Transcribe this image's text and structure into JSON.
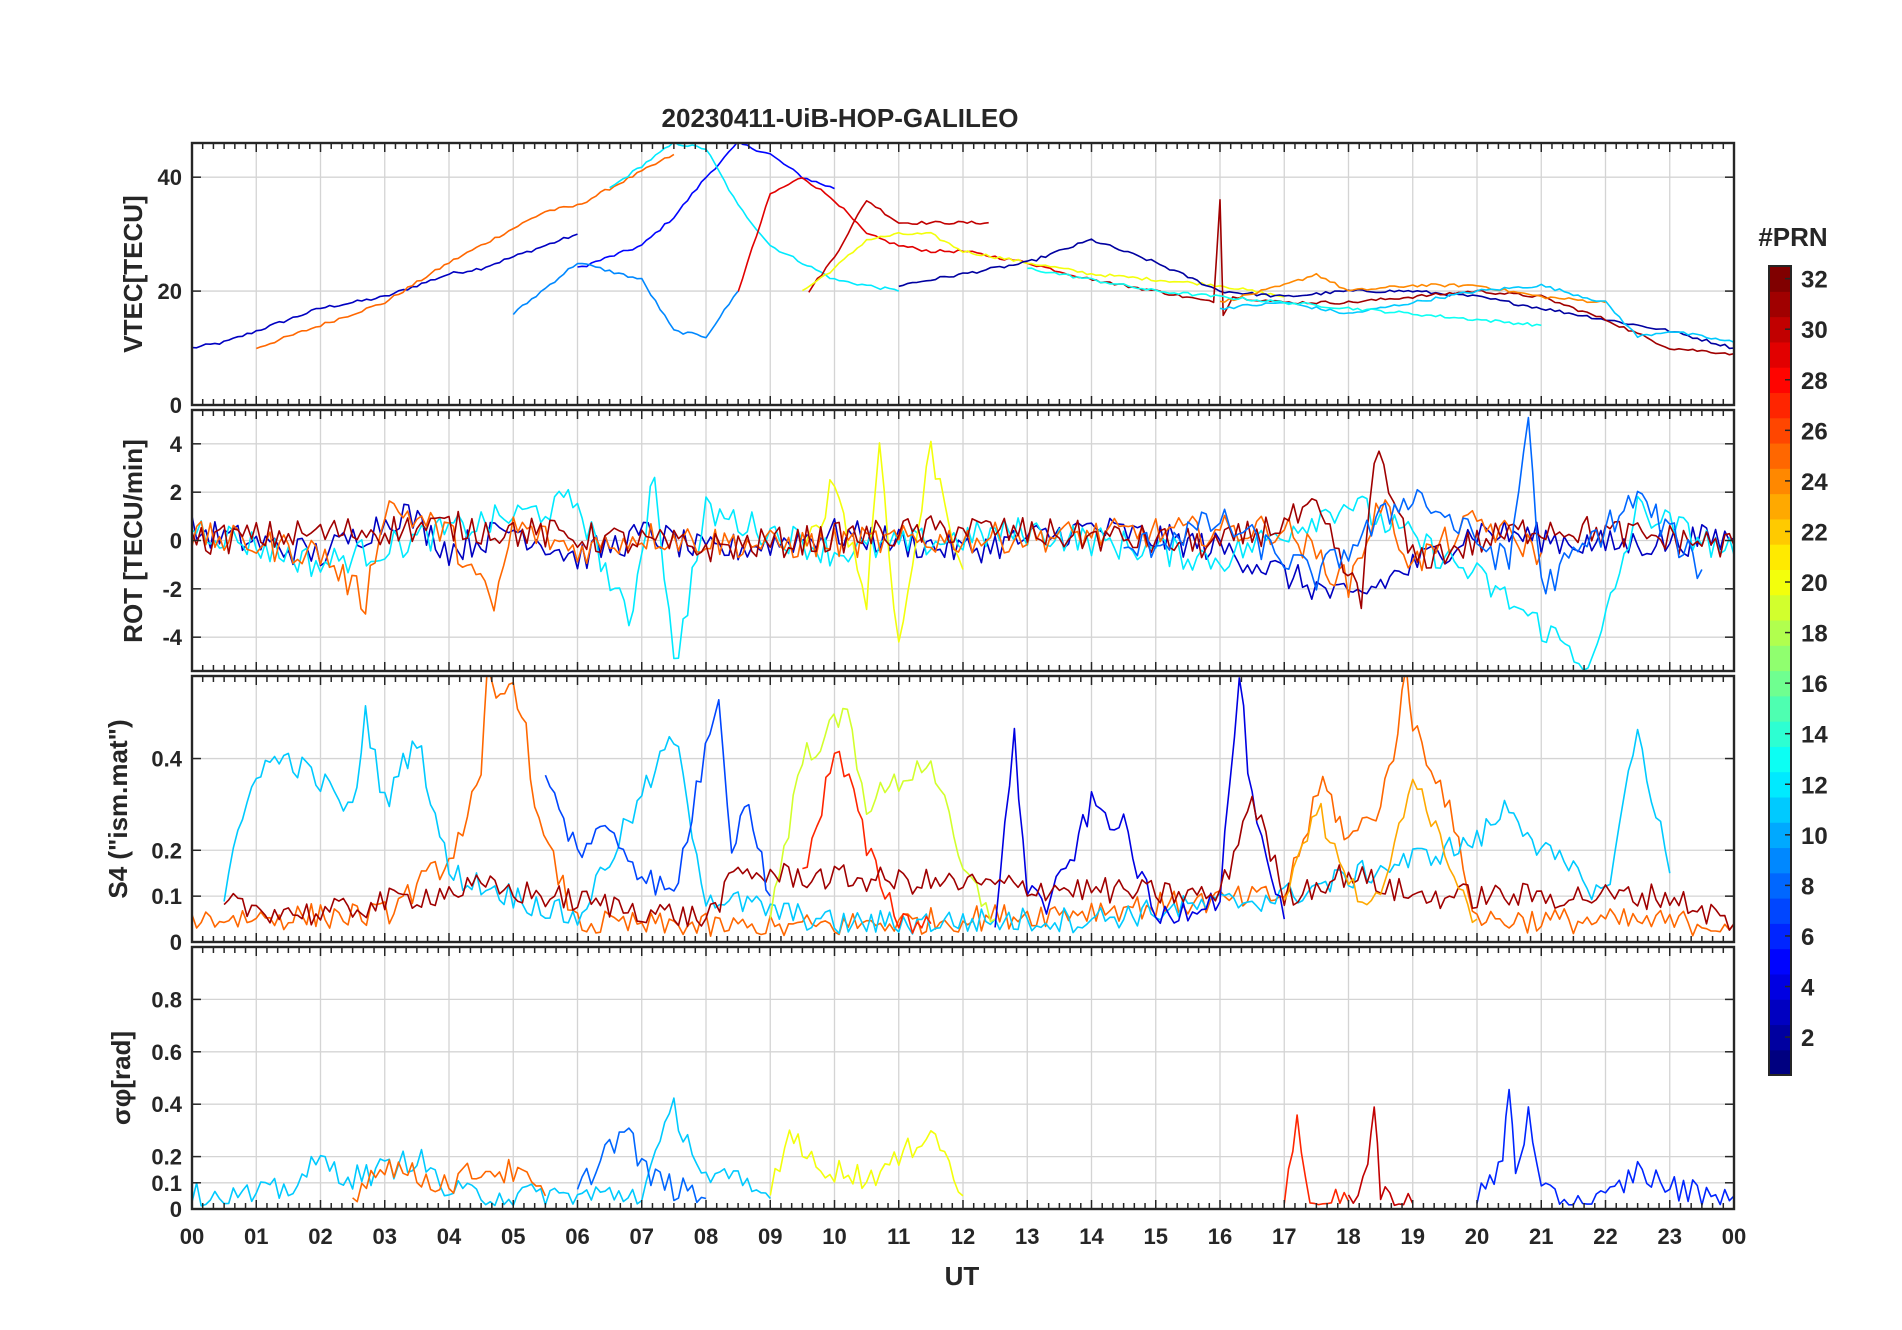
{
  "figure": {
    "title": "20230411-UiB-HOP-GALILEO",
    "xlabel": "UT"
  },
  "chart_data": [
    {
      "type": "line",
      "id": "vtec",
      "ylabel": "VTEC[TECU]",
      "ylim": [
        0,
        46
      ],
      "yticks": [
        0,
        20,
        40
      ],
      "xlim": [
        0,
        24
      ],
      "series": [
        {
          "prn": 3,
          "x": [
            0,
            0.5,
            1,
            1.5,
            2,
            2.5,
            3,
            3.5,
            4,
            4.5,
            5,
            5.5,
            6
          ],
          "y": [
            10,
            11,
            13,
            15,
            17,
            18,
            19,
            21,
            23,
            24,
            26,
            28,
            30
          ]
        },
        {
          "prn": 5,
          "x": [
            6,
            6.5,
            7,
            7.5,
            8,
            8.5,
            9,
            9.5,
            10
          ],
          "y": [
            24,
            26,
            28,
            33,
            40,
            46,
            44,
            40,
            38
          ]
        },
        {
          "prn": 25,
          "x": [
            1,
            2,
            3,
            4,
            5,
            5.5,
            6,
            7,
            7.5
          ],
          "y": [
            10,
            14,
            18,
            25,
            31,
            34,
            35,
            41,
            44
          ]
        },
        {
          "prn": 12,
          "x": [
            6.5,
            7,
            7.5,
            8,
            8.5,
            9,
            10,
            11
          ],
          "y": [
            38,
            42,
            46,
            45,
            35,
            28,
            22,
            20
          ]
        },
        {
          "prn": 29,
          "x": [
            8.5,
            9,
            9.5,
            10,
            10.5,
            11,
            11.5,
            12,
            12.5,
            13,
            14
          ],
          "y": [
            20,
            37,
            40,
            36,
            30,
            28,
            27,
            27,
            26,
            25,
            22
          ]
        },
        {
          "prn": 30,
          "x": [
            9.6,
            10,
            10.5,
            11,
            11.5,
            12,
            12.4
          ],
          "y": [
            20,
            26,
            36,
            32,
            32,
            32,
            32
          ]
        },
        {
          "prn": 20,
          "x": [
            9.5,
            10,
            10.5,
            11,
            11.5,
            12,
            13,
            14,
            15,
            16,
            17
          ],
          "y": [
            20,
            24,
            29,
            30,
            30,
            27,
            25,
            23,
            22,
            21,
            19
          ]
        },
        {
          "prn": 9,
          "x": [
            5,
            6,
            7,
            7.5,
            8,
            8.5
          ],
          "y": [
            16,
            25,
            22,
            13,
            12,
            20
          ]
        },
        {
          "prn": 2,
          "x": [
            11,
            12,
            13,
            14,
            15,
            16,
            17,
            18,
            19,
            20,
            21,
            22,
            23,
            24
          ],
          "y": [
            21,
            23,
            25,
            29,
            25,
            20,
            19,
            20,
            20,
            19,
            17,
            15,
            13,
            10
          ]
        },
        {
          "prn": 31,
          "x": [
            14,
            15,
            15.9,
            16,
            16.05,
            16.2,
            17,
            18,
            19,
            20,
            21,
            22,
            23,
            24
          ],
          "y": [
            22,
            20,
            18,
            36,
            16,
            19,
            18,
            18,
            19,
            20,
            19,
            15,
            10,
            9
          ]
        },
        {
          "prn": 24,
          "x": [
            16,
            17,
            17.5,
            18,
            19,
            20,
            21,
            22
          ],
          "y": [
            18,
            21,
            23,
            20,
            21,
            21,
            19,
            18
          ]
        },
        {
          "prn": 11,
          "x": [
            16,
            17,
            18,
            19,
            20,
            21,
            22,
            22.5,
            23,
            24
          ],
          "y": [
            17,
            18,
            16,
            18,
            20,
            21,
            18,
            12,
            13,
            11
          ]
        },
        {
          "prn": 13,
          "x": [
            13,
            14,
            15,
            16,
            17,
            18,
            19,
            20,
            21
          ],
          "y": [
            24,
            22,
            20,
            19,
            18,
            17,
            16,
            15,
            14
          ]
        }
      ]
    },
    {
      "type": "line",
      "id": "rot",
      "ylabel": "ROT [TECU/min]",
      "ylim": [
        -5.4,
        5.4
      ],
      "yticks": [
        -4,
        -2,
        0,
        2,
        4
      ],
      "xlim": [
        0,
        24
      ],
      "series": [
        {
          "prn": 3,
          "x": [
            0,
            2,
            3.3,
            4,
            5,
            6,
            7.1,
            8,
            10,
            12,
            14,
            16,
            18,
            20,
            22,
            24
          ],
          "y": [
            0.4,
            -0.6,
            1.2,
            -0.4,
            0.5,
            -0.7,
            0.3,
            -0.5,
            0.3,
            -0.4,
            0.5,
            -0.3,
            -2.5,
            0.4,
            -0.2,
            0.1
          ]
        },
        {
          "prn": 12,
          "x": [
            0,
            2,
            4,
            6,
            6.8,
            7.2,
            7.5,
            8,
            10,
            13,
            16,
            18,
            20,
            21.8,
            22.5,
            24
          ],
          "y": [
            0.6,
            -1,
            0.4,
            1.6,
            -3.5,
            3,
            -5.3,
            1.2,
            -0.5,
            0.4,
            -0.8,
            1.6,
            -1.5,
            -5.2,
            1.3,
            -0.6
          ]
        },
        {
          "prn": 20,
          "x": [
            9.5,
            10,
            10.5,
            10.7,
            11,
            11.5,
            12
          ],
          "y": [
            -0.8,
            2.5,
            -2.5,
            4.2,
            -4.5,
            3.8,
            -1.2
          ]
        },
        {
          "prn": 25,
          "x": [
            0,
            2,
            2.7,
            3,
            4,
            4.7,
            5,
            6,
            7,
            9,
            17,
            18,
            18.5,
            19,
            20,
            21
          ],
          "y": [
            0.2,
            -0.5,
            -2.5,
            1.5,
            0.3,
            -2.8,
            0.6,
            -0.4,
            0.2,
            -0.2,
            0.5,
            -1.8,
            1.6,
            -1,
            0.8,
            -0.5
          ]
        },
        {
          "prn": 31,
          "x": [
            0,
            4,
            8,
            12,
            16,
            17.5,
            18.2,
            18.4,
            19,
            21,
            24
          ],
          "y": [
            0,
            0.6,
            -0.3,
            0.5,
            -0.2,
            1.2,
            -2.6,
            3.8,
            -0.8,
            0.6,
            -0.2
          ]
        },
        {
          "prn": 8,
          "x": [
            14.5,
            16,
            17.5,
            19,
            20.5,
            20.8,
            21,
            22.5,
            23.5
          ],
          "y": [
            -0.5,
            0.8,
            -1.5,
            2,
            -1,
            5.2,
            -2,
            1.8,
            -1.2
          ]
        }
      ]
    },
    {
      "type": "line",
      "id": "s4",
      "ylabel": "S4 (\"ism.mat\")",
      "ylim": [
        0,
        0.58
      ],
      "yticks": [
        0,
        0.1,
        0.2,
        0.4
      ],
      "xlim": [
        0,
        24
      ],
      "series": [
        {
          "prn": 25,
          "x": [
            0,
            3,
            4,
            4.5,
            4.6,
            4.8,
            5,
            5.2,
            5.4,
            6,
            9,
            12,
            17,
            17.6,
            18,
            18.5,
            18.7,
            18.9,
            19,
            19.5,
            20,
            24
          ],
          "y": [
            0.05,
            0.06,
            0.18,
            0.35,
            0.58,
            0.52,
            0.58,
            0.45,
            0.25,
            0.04,
            0.03,
            0.05,
            0.1,
            0.35,
            0.22,
            0.3,
            0.42,
            0.58,
            0.48,
            0.32,
            0.05,
            0.04
          ]
        },
        {
          "prn": 11,
          "x": [
            0.5,
            1,
            1.5,
            2,
            2.5,
            2.7,
            3,
            3.5,
            4,
            6,
            7.5,
            8,
            10,
            14,
            17,
            20,
            20.5,
            21,
            22,
            22.5,
            23
          ],
          "y": [
            0.1,
            0.38,
            0.4,
            0.35,
            0.28,
            0.5,
            0.3,
            0.45,
            0.15,
            0.05,
            0.45,
            0.1,
            0.04,
            0.05,
            0.1,
            0.22,
            0.3,
            0.2,
            0.1,
            0.46,
            0.15
          ]
        },
        {
          "prn": 27,
          "x": [
            9.5,
            9.8,
            10,
            10.3,
            10.5,
            11,
            11.5
          ],
          "y": [
            0.15,
            0.3,
            0.42,
            0.32,
            0.2,
            0.05,
            0.04
          ]
        },
        {
          "prn": 19,
          "x": [
            9,
            9.5,
            10.2,
            10.5,
            11,
            11.5,
            12,
            12.5
          ],
          "y": [
            0.06,
            0.4,
            0.5,
            0.3,
            0.35,
            0.4,
            0.15,
            0.05
          ]
        },
        {
          "prn": 4,
          "x": [
            12.5,
            12.8,
            13,
            13.3,
            13.6,
            14,
            14.5,
            15,
            16,
            16.3,
            16.5,
            16.8,
            17
          ],
          "y": [
            0.05,
            0.44,
            0.12,
            0.08,
            0.15,
            0.3,
            0.25,
            0.05,
            0.1,
            0.58,
            0.3,
            0.12,
            0.05
          ]
        },
        {
          "prn": 31,
          "x": [
            0.5,
            2,
            3.5,
            4.5,
            8,
            8.5,
            16,
            16.5,
            17,
            18,
            19,
            23,
            24
          ],
          "y": [
            0.08,
            0.06,
            0.1,
            0.12,
            0.05,
            0.15,
            0.1,
            0.32,
            0.1,
            0.15,
            0.1,
            0.1,
            0.04
          ]
        },
        {
          "prn": 7,
          "x": [
            5.5,
            6,
            6.5,
            7,
            7.5,
            8.2,
            8.4,
            8.6,
            9
          ],
          "y": [
            0.35,
            0.2,
            0.25,
            0.15,
            0.1,
            0.55,
            0.2,
            0.32,
            0.1
          ]
        },
        {
          "prn": 23,
          "x": [
            17,
            17.5,
            18,
            18.5,
            19,
            19.5,
            20
          ],
          "y": [
            0.1,
            0.3,
            0.12,
            0.08,
            0.38,
            0.2,
            0.05
          ]
        }
      ]
    },
    {
      "type": "line",
      "id": "sigma",
      "ylabel": "σφ[rad]",
      "ylim": [
        0,
        1.0
      ],
      "yticks": [
        0,
        0.1,
        0.2,
        0.4,
        0.6,
        0.8
      ],
      "xlim": [
        0,
        24
      ],
      "series": [
        {
          "prn": 11,
          "x": [
            0,
            1,
            1.5,
            2,
            2.5,
            3,
            3.5,
            4,
            5,
            6,
            7,
            7.5,
            8,
            8.5,
            9
          ],
          "y": [
            0.05,
            0.05,
            0.08,
            0.18,
            0.12,
            0.15,
            0.2,
            0.06,
            0.05,
            0.05,
            0.06,
            0.38,
            0.12,
            0.1,
            0.04
          ]
        },
        {
          "prn": 25,
          "x": [
            2.5,
            3,
            3.5,
            4,
            4.5,
            5,
            5.5
          ],
          "y": [
            0.06,
            0.18,
            0.12,
            0.1,
            0.15,
            0.14,
            0.05
          ]
        },
        {
          "prn": 8,
          "x": [
            6,
            6.5,
            6.8,
            7,
            7.5,
            8
          ],
          "y": [
            0.06,
            0.25,
            0.3,
            0.15,
            0.08,
            0.04
          ]
        },
        {
          "prn": 20,
          "x": [
            9,
            9.3,
            9.5,
            10,
            10.5,
            11,
            11.5,
            12
          ],
          "y": [
            0.06,
            0.32,
            0.2,
            0.15,
            0.12,
            0.18,
            0.32,
            0.05
          ]
        },
        {
          "prn": 27,
          "x": [
            17,
            17.2,
            17.4,
            17.6,
            18
          ],
          "y": [
            0.02,
            0.36,
            0.05,
            0.02,
            0.03
          ]
        },
        {
          "prn": 30,
          "x": [
            18,
            18.3,
            18.4,
            18.5,
            19
          ],
          "y": [
            0.03,
            0.15,
            0.42,
            0.05,
            0.02
          ]
        },
        {
          "prn": 6,
          "x": [
            20,
            20.4,
            20.5,
            20.6,
            20.8,
            21,
            22,
            22.5,
            23,
            24
          ],
          "y": [
            0.03,
            0.18,
            0.48,
            0.15,
            0.35,
            0.05,
            0.03,
            0.15,
            0.08,
            0.05
          ]
        }
      ]
    }
  ],
  "xaxis": {
    "ticklabels": [
      "00",
      "01",
      "02",
      "03",
      "04",
      "05",
      "06",
      "07",
      "08",
      "09",
      "10",
      "11",
      "12",
      "13",
      "14",
      "15",
      "16",
      "17",
      "18",
      "19",
      "20",
      "21",
      "22",
      "23",
      "00"
    ]
  },
  "colorbar": {
    "label": "#PRN",
    "min": 1,
    "max": 32,
    "ticks": [
      2,
      4,
      6,
      8,
      10,
      12,
      14,
      16,
      18,
      20,
      22,
      24,
      26,
      28,
      30,
      32
    ],
    "colormap": "jet"
  }
}
